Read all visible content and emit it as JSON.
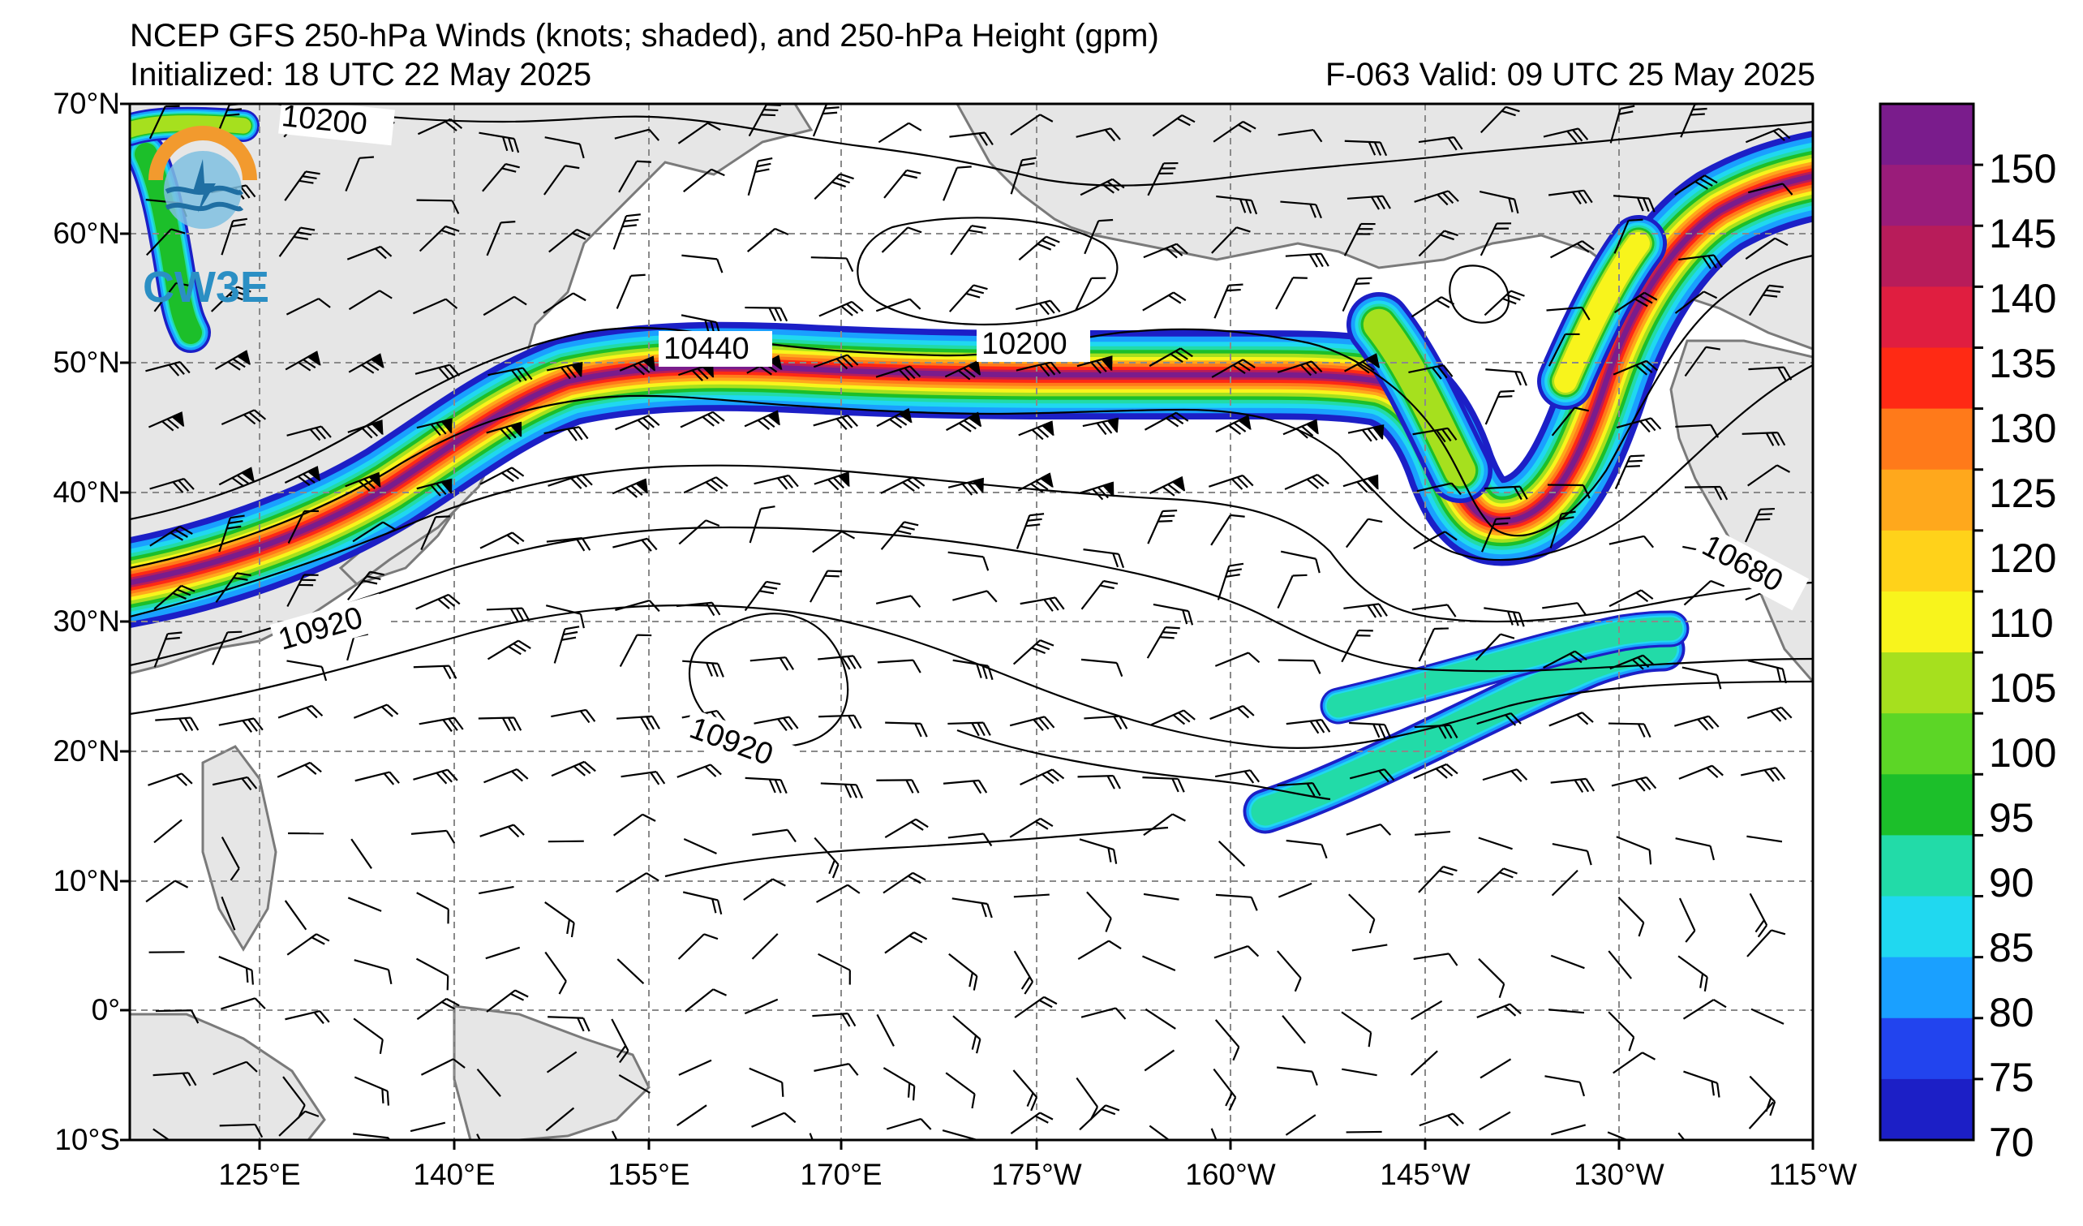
{
  "header": {
    "title": "NCEP GFS 250-hPa Winds (knots; shaded), and 250-hPa Height (gpm)",
    "initialized": "Initialized: 18 UTC 22 May 2025",
    "valid": "F-063  Valid: 09 UTC 25 May 2025"
  },
  "logo": {
    "text": "CW3E",
    "icon": "cw3e-logo-icon"
  },
  "axes": {
    "lat_labels": [
      "70°N",
      "60°N",
      "50°N",
      "40°N",
      "30°N",
      "20°N",
      "10°N",
      "0°",
      "10°S"
    ],
    "lon_labels": [
      "125°E",
      "140°E",
      "155°E",
      "170°E",
      "175°W",
      "160°W",
      "145°W",
      "130°W",
      "115°W"
    ]
  },
  "colorbar": {
    "labels": [
      "150",
      "145",
      "140",
      "135",
      "130",
      "125",
      "120",
      "110",
      "105",
      "100",
      "95",
      "90",
      "85",
      "80",
      "75",
      "70"
    ],
    "colors": [
      "#1c1fc6",
      "#2244ee",
      "#1aa0ff",
      "#20d8f0",
      "#22dba8",
      "#1cbf2a",
      "#5cd626",
      "#a6e01e",
      "#f8f41c",
      "#ffd21a",
      "#ffa81c",
      "#ff7a1a",
      "#ff2a14",
      "#e01e40",
      "#b81c5a",
      "#9a1c7a",
      "#7a1c8c"
    ]
  },
  "contours": {
    "labels": [
      "10200",
      "10440",
      "10200",
      "10680",
      "10920",
      "10920"
    ]
  },
  "colors": {
    "land": "#e6e6e6",
    "coast": "#7a7a7a",
    "grid": "#8a8a8a",
    "contour": "#000000"
  }
}
